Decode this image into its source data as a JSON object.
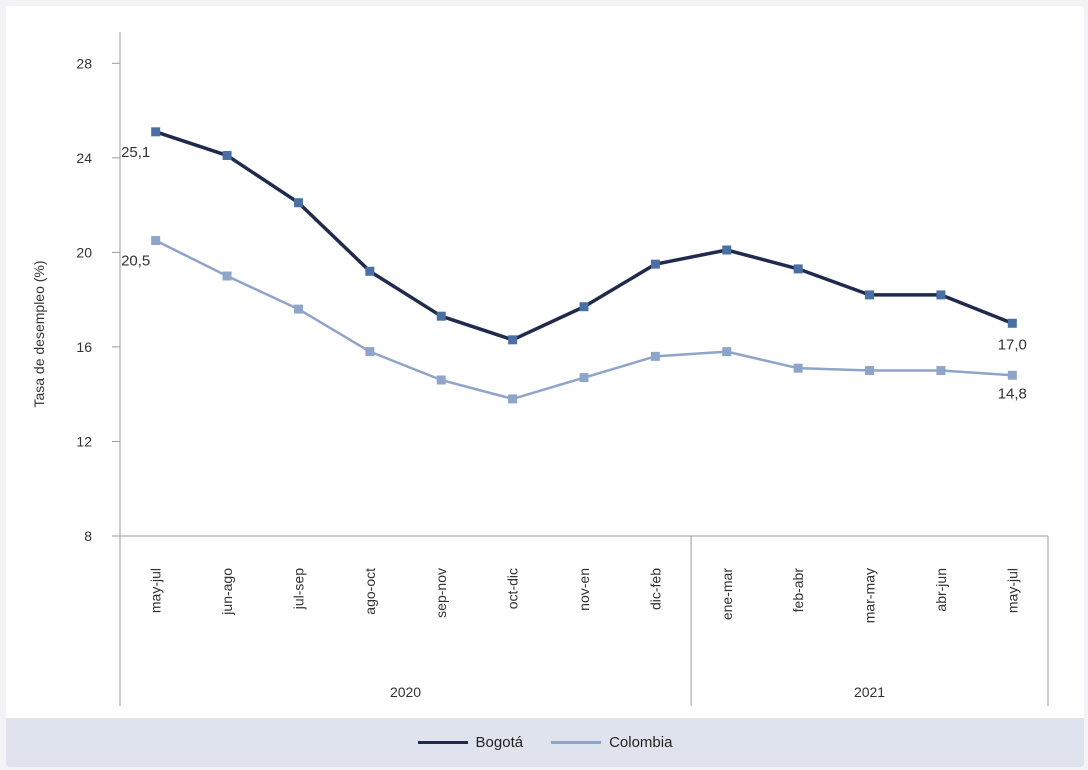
{
  "chart_data": {
    "type": "line",
    "categories": [
      "may-jul",
      "jun-ago",
      "jul-sep",
      "ago-oct",
      "sep-nov",
      "oct-dic",
      "nov-en",
      "dic-feb",
      "ene-mar",
      "feb-abr",
      "mar-may",
      "abr-jun",
      "may-jul"
    ],
    "groups": [
      {
        "label": "2020",
        "count": 8
      },
      {
        "label": "2021",
        "count": 5
      }
    ],
    "ylabel": "Tasa de desempleo (%)",
    "xlabel": "",
    "ylim": [
      8,
      30
    ],
    "yticks": [
      8,
      12,
      16,
      20,
      24,
      28
    ],
    "series": [
      {
        "name": "Bogotá",
        "color": "#1f2a4d",
        "marker_color": "#4a6fa5",
        "values": [
          25.1,
          24.1,
          22.1,
          19.2,
          17.3,
          16.3,
          17.7,
          19.5,
          20.1,
          19.3,
          18.2,
          18.2,
          17.0
        ],
        "labels": {
          "0": "25,1",
          "12": "17,0"
        }
      },
      {
        "name": "Colombia",
        "color": "#8fa4c9",
        "marker_color": "#8fa4c9",
        "values": [
          20.5,
          19.0,
          17.6,
          15.8,
          14.6,
          13.8,
          14.7,
          15.6,
          15.8,
          15.1,
          15.0,
          15.0,
          14.8
        ],
        "labels": {
          "0": "20,5",
          "12": "14,8"
        }
      }
    ],
    "legend_position": "bottom"
  }
}
